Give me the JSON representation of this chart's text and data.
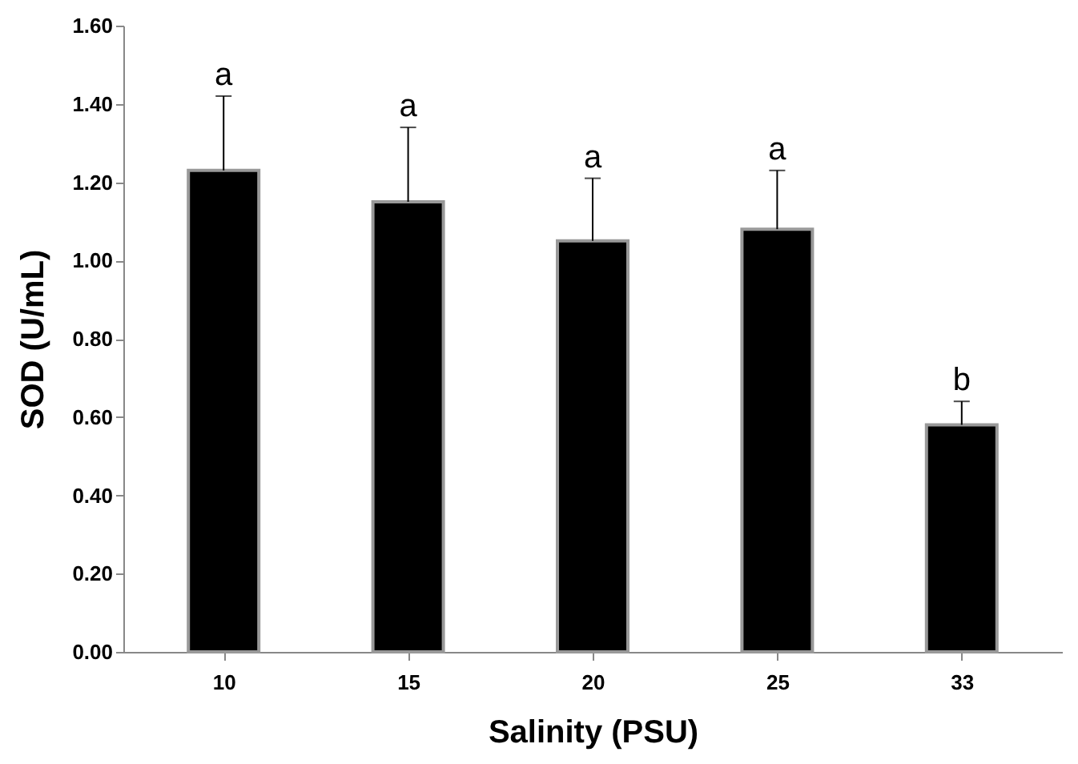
{
  "chart_data": {
    "type": "bar",
    "xlabel": "Salinity (PSU)",
    "ylabel": "SOD (U/mL)",
    "categories": [
      "10",
      "15",
      "20",
      "25",
      "33"
    ],
    "values": [
      1.23,
      1.15,
      1.05,
      1.08,
      0.58
    ],
    "color": "#000000",
    "errors": [
      [
        1.23,
        1.42
      ],
      [
        1.15,
        1.34
      ],
      [
        1.05,
        1.21
      ],
      [
        1.08,
        1.23
      ],
      [
        0.58,
        0.64
      ]
    ],
    "ylim": [
      0,
      1.6
    ],
    "yticks": [
      {
        "value": 0,
        "label": "0.00"
      },
      {
        "value": 0.2,
        "label": "0.20"
      },
      {
        "value": 0.4,
        "label": "0.40"
      },
      {
        "value": 0.6,
        "label": "0.60"
      },
      {
        "value": 0.8,
        "label": "0.80"
      },
      {
        "value": 1,
        "label": "1.00"
      },
      {
        "value": 1.2,
        "label": "1.20"
      },
      {
        "value": 1.4,
        "label": "1.40"
      },
      {
        "value": 1.6,
        "label": "1.60"
      }
    ],
    "annotations": [
      {
        "text": "a",
        "x": "10",
        "y": 1.42
      },
      {
        "text": "a",
        "x": "15",
        "y": 1.34
      },
      {
        "text": "a",
        "x": "20",
        "y": 1.21
      },
      {
        "text": "a",
        "x": "25",
        "y": 1.23
      },
      {
        "text": "b",
        "x": "33",
        "y": 0.64
      }
    ],
    "grid": false
  }
}
